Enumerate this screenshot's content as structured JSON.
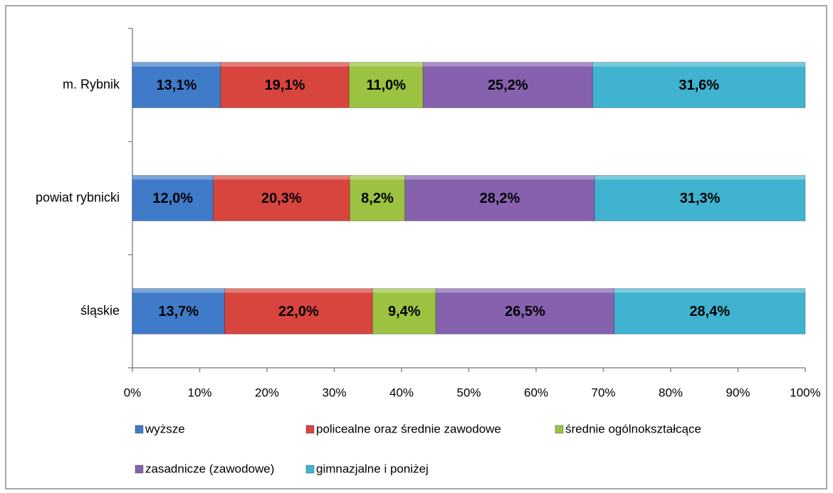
{
  "chart_data": {
    "type": "stacked_barh",
    "categories": [
      "m. Rybnik",
      "powiat rybnicki",
      "śląskie"
    ],
    "series": [
      {
        "name": "wyższe",
        "color": "#3f7bc9",
        "values": [
          13.1,
          12.0,
          13.7
        ],
        "value_labels": [
          "13,1%",
          "12,0%",
          "13,7%"
        ]
      },
      {
        "name": "policealne oraz średnie zawodowe",
        "color": "#d8443e",
        "values": [
          19.1,
          20.3,
          22.0
        ],
        "value_labels": [
          "19,1%",
          "20,3%",
          "22,0%"
        ]
      },
      {
        "name": "średnie ogólnokształcące",
        "color": "#9bc240",
        "values": [
          11.0,
          8.2,
          9.4
        ],
        "value_labels": [
          "11,0%",
          "8,2%",
          "9,4%"
        ]
      },
      {
        "name": "zasadnicze (zawodowe)",
        "color": "#8561ae",
        "values": [
          25.2,
          28.2,
          26.5
        ],
        "value_labels": [
          "25,2%",
          "28,2%",
          "26,5%"
        ]
      },
      {
        "name": "gimnazjalne i poniżej",
        "color": "#3fb3cf",
        "values": [
          31.6,
          31.3,
          28.4
        ],
        "value_labels": [
          "31,6%",
          "31,3%",
          "28,4%"
        ]
      }
    ],
    "xlim": [
      0,
      100
    ],
    "xticks": [
      {
        "value": 0,
        "label": "0%"
      },
      {
        "value": 10,
        "label": "10%"
      },
      {
        "value": 20,
        "label": "20%"
      },
      {
        "value": 30,
        "label": "30%"
      },
      {
        "value": 40,
        "label": "40%"
      },
      {
        "value": 50,
        "label": "50%"
      },
      {
        "value": 60,
        "label": "60%"
      },
      {
        "value": 70,
        "label": "70%"
      },
      {
        "value": 80,
        "label": "80%"
      },
      {
        "value": 90,
        "label": "90%"
      },
      {
        "value": 100,
        "label": "100%"
      }
    ],
    "legend": "bottom"
  }
}
